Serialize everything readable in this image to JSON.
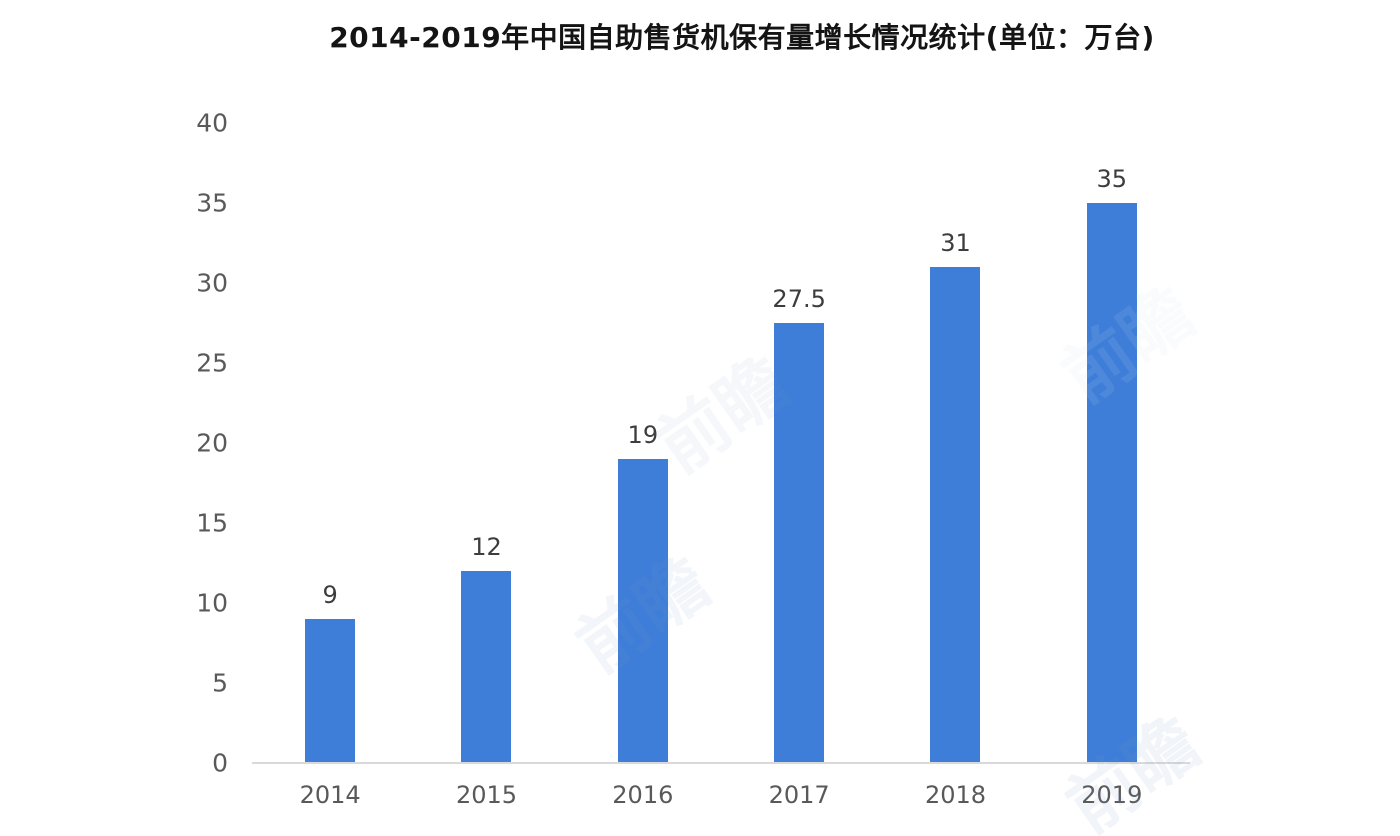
{
  "page": {
    "background": "#ffffff"
  },
  "chart_data": {
    "type": "bar",
    "title": "2014-2019年中国自助售货机保有量增长情况统计(单位：万台)",
    "categories": [
      "2014",
      "2015",
      "2016",
      "2017",
      "2018",
      "2019"
    ],
    "values": [
      9,
      12,
      19,
      27.5,
      31,
      35
    ],
    "value_labels": [
      "9",
      "12",
      "19",
      "27.5",
      "31",
      "35"
    ],
    "xlabel": "",
    "ylabel": "",
    "unit": "万台",
    "ylim": [
      0,
      40
    ],
    "yticks": [
      0,
      5,
      10,
      15,
      20,
      25,
      30,
      35,
      40
    ],
    "grid": false,
    "legend": false,
    "bar_color": "#3e7ed8",
    "axis_line_color": "#d9d9d9",
    "tick_label_color": "#595959",
    "data_label_color": "#3d3d3d",
    "title_color": "#141414"
  },
  "watermark": {
    "text": "前瞻"
  }
}
